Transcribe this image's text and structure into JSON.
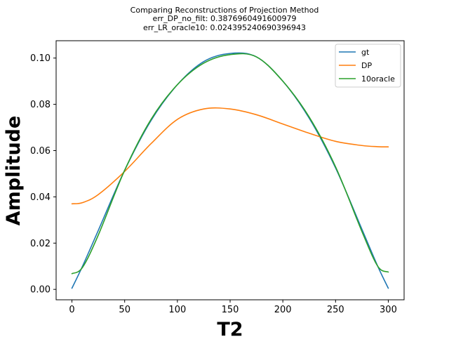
{
  "chart_data": {
    "type": "line",
    "title_lines": [
      "Comparing Reconstructions of Projection Method",
      "err_DP_no_filt: 0.3876960491600979",
      "err_LR_oracle10: 0.024395240690396943"
    ],
    "xlabel": "T2",
    "ylabel": "Amplitude",
    "xlim": [
      -15,
      315
    ],
    "ylim": [
      -0.0045,
      0.1075
    ],
    "xticks": [
      0,
      50,
      100,
      150,
      200,
      250,
      300
    ],
    "xtick_labels": [
      "0",
      "50",
      "100",
      "150",
      "200",
      "250",
      "300"
    ],
    "yticks": [
      0.0,
      0.02,
      0.04,
      0.06,
      0.08,
      0.1
    ],
    "ytick_labels": [
      "0.00",
      "0.02",
      "0.04",
      "0.06",
      "0.08",
      "0.10"
    ],
    "grid": false,
    "legend_position": "top-right",
    "x": [
      0,
      10,
      25,
      50,
      75,
      100,
      125,
      150,
      175,
      200,
      225,
      250,
      275,
      290,
      300
    ],
    "series": [
      {
        "name": "gt",
        "color": "#1f77b4",
        "values": [
          0.0005,
          0.01,
          0.0255,
          0.0515,
          0.073,
          0.0885,
          0.0985,
          0.102,
          0.1005,
          0.09,
          0.074,
          0.0525,
          0.026,
          0.01,
          0.0005
        ]
      },
      {
        "name": "DP",
        "color": "#ff7f0e",
        "values": [
          0.037,
          0.0375,
          0.041,
          0.051,
          0.063,
          0.0735,
          0.078,
          0.078,
          0.0755,
          0.0715,
          0.0675,
          0.064,
          0.0622,
          0.0617,
          0.0616
        ]
      },
      {
        "name": "10oracle",
        "color": "#2ca02c",
        "values": [
          0.0068,
          0.0095,
          0.0235,
          0.0515,
          0.0735,
          0.0885,
          0.0978,
          0.1015,
          0.1005,
          0.09,
          0.0745,
          0.053,
          0.025,
          0.01,
          0.0075
        ]
      }
    ]
  }
}
